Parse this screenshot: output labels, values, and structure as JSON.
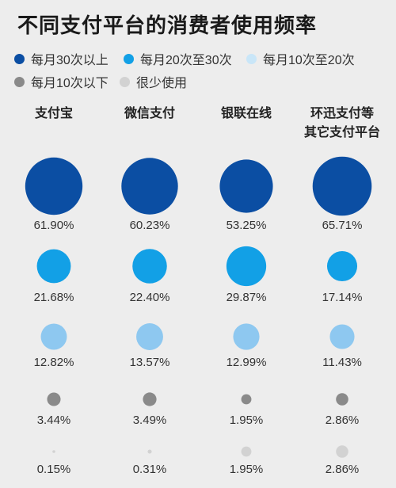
{
  "title": "不同支付平台的消费者使用频率",
  "legend": [
    {
      "label": "每月30次以上",
      "color": "#0b4ea3"
    },
    {
      "label": "每月20次至30次",
      "color": "#12a0e6"
    },
    {
      "label": "每月10次至20次",
      "color": "#c9e6f8"
    },
    {
      "label": "每月10次以下",
      "color": "#8a8a8a"
    },
    {
      "label": "很少使用",
      "color": "#d2d2d2"
    }
  ],
  "chart_data": {
    "type": "bubble-grid",
    "categories": [
      {
        "line1": "支付宝",
        "line2": ""
      },
      {
        "line1": "微信支付",
        "line2": ""
      },
      {
        "line1": "银联在线",
        "line2": ""
      },
      {
        "line1": "环迅支付等",
        "line2": "其它支付平台"
      }
    ],
    "series": [
      {
        "name": "每月30次以上",
        "color": "#0b4ea3",
        "values": [
          61.9,
          60.23,
          53.25,
          65.71
        ],
        "labels": [
          "61.90%",
          "60.23%",
          "53.25%",
          "65.71%"
        ]
      },
      {
        "name": "每月20次至30次",
        "color": "#12a0e6",
        "values": [
          21.68,
          22.4,
          29.87,
          17.14
        ],
        "labels": [
          "21.68%",
          "22.40%",
          "29.87%",
          "17.14%"
        ]
      },
      {
        "name": "每月10次至20次",
        "color": "#8ec8f0",
        "values": [
          12.82,
          13.57,
          12.99,
          11.43
        ],
        "labels": [
          "12.82%",
          "13.57%",
          "12.99%",
          "11.43%"
        ]
      },
      {
        "name": "每月10次以下",
        "color": "#8a8a8a",
        "values": [
          3.44,
          3.49,
          1.95,
          2.86
        ],
        "labels": [
          "3.44%",
          "3.49%",
          "1.95%",
          "2.86%"
        ]
      },
      {
        "name": "很少使用",
        "color": "#d2d2d2",
        "values": [
          0.15,
          0.31,
          1.95,
          2.86
        ],
        "labels": [
          "0.15%",
          "0.31%",
          "1.95%",
          "2.86%"
        ]
      }
    ]
  }
}
